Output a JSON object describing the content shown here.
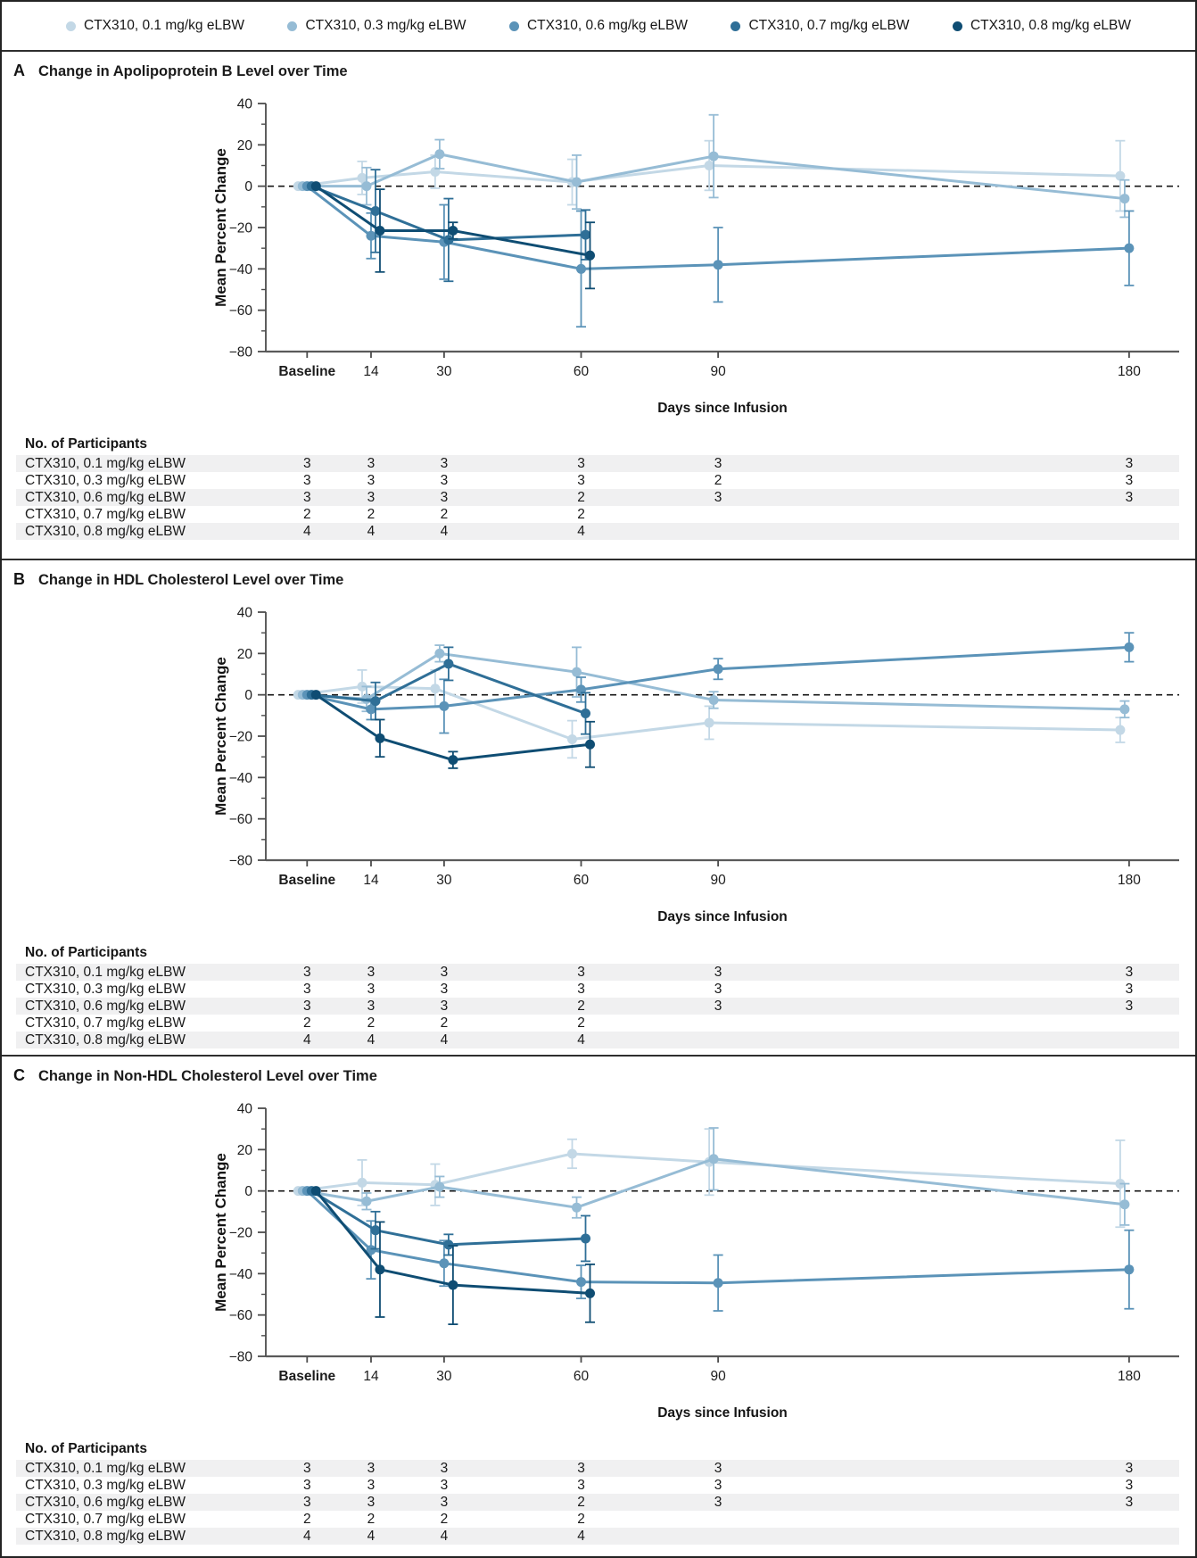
{
  "legend": {
    "items": [
      {
        "label": "CTX310, 0.1 mg/kg eLBW",
        "color": "#c3d8e6"
      },
      {
        "label": "CTX310, 0.3 mg/kg eLBW",
        "color": "#96bcd5"
      },
      {
        "label": "CTX310, 0.6 mg/kg eLBW",
        "color": "#5b93b8"
      },
      {
        "label": "CTX310, 0.7 mg/kg eLBW",
        "color": "#2f6f97"
      },
      {
        "label": "CTX310, 0.8 mg/kg eLBW",
        "color": "#0f4d73"
      }
    ]
  },
  "axes": {
    "ylabel": "Mean Percent Change",
    "xlabel": "Days since Infusion",
    "ylim": [
      -80,
      40
    ],
    "y_tick_values": [
      40,
      20,
      0,
      -20,
      -40,
      -60,
      -80
    ],
    "y_tick_labels": [
      "40",
      "20",
      "0",
      "−20",
      "−40",
      "−60",
      "−80"
    ],
    "y_minor_values": [
      30,
      10,
      -10,
      -30,
      -50,
      -70
    ],
    "x_tick_days": [
      0,
      14,
      30,
      60,
      90,
      180
    ],
    "x_tick_labels": [
      "Baseline",
      "14",
      "30",
      "60",
      "90",
      "180"
    ],
    "grid": false,
    "legend_position": "top"
  },
  "chart_data": [
    {
      "type": "line",
      "panel": "A",
      "title": "Change in Apolipoprotein B Level over Time",
      "xlabel": "Days since Infusion",
      "ylabel": "Mean Percent Change",
      "ylim": [
        -80,
        40
      ],
      "x_days": [
        0,
        14,
        30,
        60,
        90,
        180
      ],
      "x_tick_labels": [
        "Baseline",
        "14",
        "30",
        "60",
        "90",
        "180"
      ],
      "series": [
        {
          "name": "CTX310, 0.1 mg/kg eLBW",
          "color": "#c3d8e6",
          "values": [
            0,
            4,
            7,
            2,
            10,
            5
          ],
          "err": [
            0,
            8,
            8,
            11,
            12,
            17
          ]
        },
        {
          "name": "CTX310, 0.3 mg/kg eLBW",
          "color": "#96bcd5",
          "values": [
            0,
            0,
            15.5,
            2,
            14.5,
            -6
          ],
          "err": [
            0,
            9,
            7,
            13,
            20,
            9
          ]
        },
        {
          "name": "CTX310, 0.6 mg/kg eLBW",
          "color": "#5b93b8",
          "values": [
            0,
            -24,
            -27,
            -40,
            -38,
            -30
          ],
          "err": [
            0,
            11,
            18,
            28,
            18,
            18
          ]
        },
        {
          "name": "CTX310, 0.7 mg/kg eLBW",
          "color": "#2f6f97",
          "values": [
            0,
            -12,
            -26,
            -23.5,
            null,
            null
          ],
          "err": [
            0,
            20,
            20,
            12,
            null,
            null
          ]
        },
        {
          "name": "CTX310, 0.8 mg/kg eLBW",
          "color": "#0f4d73",
          "values": [
            0,
            -21.5,
            -21.5,
            -33.5,
            null,
            null
          ],
          "err": [
            0,
            20,
            4,
            16,
            null,
            null
          ]
        }
      ],
      "participants": {
        "header": "No. of Participants",
        "rows": [
          {
            "label": "CTX310, 0.1 mg/kg eLBW",
            "counts": [
              "3",
              "3",
              "3",
              "3",
              "3",
              "3"
            ]
          },
          {
            "label": "CTX310, 0.3 mg/kg eLBW",
            "counts": [
              "3",
              "3",
              "3",
              "3",
              "2",
              "3"
            ]
          },
          {
            "label": "CTX310, 0.6 mg/kg eLBW",
            "counts": [
              "3",
              "3",
              "3",
              "2",
              "3",
              "3"
            ]
          },
          {
            "label": "CTX310, 0.7 mg/kg eLBW",
            "counts": [
              "2",
              "2",
              "2",
              "2",
              "",
              ""
            ]
          },
          {
            "label": "CTX310, 0.8 mg/kg eLBW",
            "counts": [
              "4",
              "4",
              "4",
              "4",
              "",
              ""
            ]
          }
        ]
      }
    },
    {
      "type": "line",
      "panel": "B",
      "title": "Change in HDL Cholesterol Level over Time",
      "xlabel": "Days since Infusion",
      "ylabel": "Mean Percent Change",
      "ylim": [
        -80,
        40
      ],
      "x_days": [
        0,
        14,
        30,
        60,
        90,
        180
      ],
      "x_tick_labels": [
        "Baseline",
        "14",
        "30",
        "60",
        "90",
        "180"
      ],
      "series": [
        {
          "name": "CTX310, 0.1 mg/kg eLBW",
          "color": "#c3d8e6",
          "values": [
            0,
            4,
            3,
            -21.5,
            -13.5,
            -17
          ],
          "err": [
            0,
            8,
            9,
            9,
            8,
            6
          ]
        },
        {
          "name": "CTX310, 0.3 mg/kg eLBW",
          "color": "#96bcd5",
          "values": [
            0,
            -2,
            20,
            11,
            -2.5,
            -7
          ],
          "err": [
            0,
            6,
            4,
            12,
            4,
            4
          ]
        },
        {
          "name": "CTX310, 0.6 mg/kg eLBW",
          "color": "#5b93b8",
          "values": [
            0,
            -7,
            -5.5,
            2.5,
            12.5,
            23
          ],
          "err": [
            0,
            5,
            13,
            6,
            5,
            7
          ]
        },
        {
          "name": "CTX310, 0.7 mg/kg eLBW",
          "color": "#2f6f97",
          "values": [
            0,
            -3,
            15,
            -9,
            null,
            null
          ],
          "err": [
            0,
            9,
            8,
            10,
            null,
            null
          ]
        },
        {
          "name": "CTX310, 0.8 mg/kg eLBW",
          "color": "#0f4d73",
          "values": [
            0,
            -21,
            -31.5,
            -24,
            null,
            null
          ],
          "err": [
            0,
            9,
            4,
            11,
            null,
            null
          ]
        }
      ],
      "participants": {
        "header": "No. of Participants",
        "rows": [
          {
            "label": "CTX310, 0.1 mg/kg eLBW",
            "counts": [
              "3",
              "3",
              "3",
              "3",
              "3",
              "3"
            ]
          },
          {
            "label": "CTX310, 0.3 mg/kg eLBW",
            "counts": [
              "3",
              "3",
              "3",
              "3",
              "3",
              "3"
            ]
          },
          {
            "label": "CTX310, 0.6 mg/kg eLBW",
            "counts": [
              "3",
              "3",
              "3",
              "2",
              "3",
              "3"
            ]
          },
          {
            "label": "CTX310, 0.7 mg/kg eLBW",
            "counts": [
              "2",
              "2",
              "2",
              "2",
              "",
              ""
            ]
          },
          {
            "label": "CTX310, 0.8 mg/kg eLBW",
            "counts": [
              "4",
              "4",
              "4",
              "4",
              "",
              ""
            ]
          }
        ]
      }
    },
    {
      "type": "line",
      "panel": "C",
      "title": "Change in Non-HDL Cholesterol Level over Time",
      "xlabel": "Days since Infusion",
      "ylabel": "Mean Percent Change",
      "ylim": [
        -80,
        40
      ],
      "x_days": [
        0,
        14,
        30,
        60,
        90,
        180
      ],
      "x_tick_labels": [
        "Baseline",
        "14",
        "30",
        "60",
        "90",
        "180"
      ],
      "series": [
        {
          "name": "CTX310, 0.1 mg/kg eLBW",
          "color": "#c3d8e6",
          "values": [
            0,
            4,
            3,
            18,
            14,
            3.5
          ],
          "err": [
            0,
            11,
            10,
            7,
            16,
            21
          ]
        },
        {
          "name": "CTX310, 0.3 mg/kg eLBW",
          "color": "#96bcd5",
          "values": [
            0,
            -5,
            2,
            -8,
            15.5,
            -6.5
          ],
          "err": [
            0,
            4,
            5,
            5,
            15,
            10
          ]
        },
        {
          "name": "CTX310, 0.6 mg/kg eLBW",
          "color": "#5b93b8",
          "values": [
            0,
            -28.5,
            -35,
            -44,
            -44.5,
            -38
          ],
          "err": [
            0,
            14,
            11,
            8,
            13.5,
            19
          ]
        },
        {
          "name": "CTX310, 0.7 mg/kg eLBW",
          "color": "#2f6f97",
          "values": [
            0,
            -19,
            -26,
            -23,
            null,
            null
          ],
          "err": [
            0,
            9,
            5,
            11,
            null,
            null
          ]
        },
        {
          "name": "CTX310, 0.8 mg/kg eLBW",
          "color": "#0f4d73",
          "values": [
            0,
            -38,
            -45.5,
            -49.5,
            null,
            null
          ],
          "err": [
            0,
            23,
            19,
            14,
            null,
            null
          ]
        }
      ],
      "participants": {
        "header": "No. of Participants",
        "rows": [
          {
            "label": "CTX310, 0.1 mg/kg eLBW",
            "counts": [
              "3",
              "3",
              "3",
              "3",
              "3",
              "3"
            ]
          },
          {
            "label": "CTX310, 0.3 mg/kg eLBW",
            "counts": [
              "3",
              "3",
              "3",
              "3",
              "3",
              "3"
            ]
          },
          {
            "label": "CTX310, 0.6 mg/kg eLBW",
            "counts": [
              "3",
              "3",
              "3",
              "2",
              "3",
              "3"
            ]
          },
          {
            "label": "CTX310, 0.7 mg/kg eLBW",
            "counts": [
              "2",
              "2",
              "2",
              "2",
              "",
              ""
            ]
          },
          {
            "label": "CTX310, 0.8 mg/kg eLBW",
            "counts": [
              "4",
              "4",
              "4",
              "4",
              "",
              ""
            ]
          }
        ]
      }
    }
  ]
}
